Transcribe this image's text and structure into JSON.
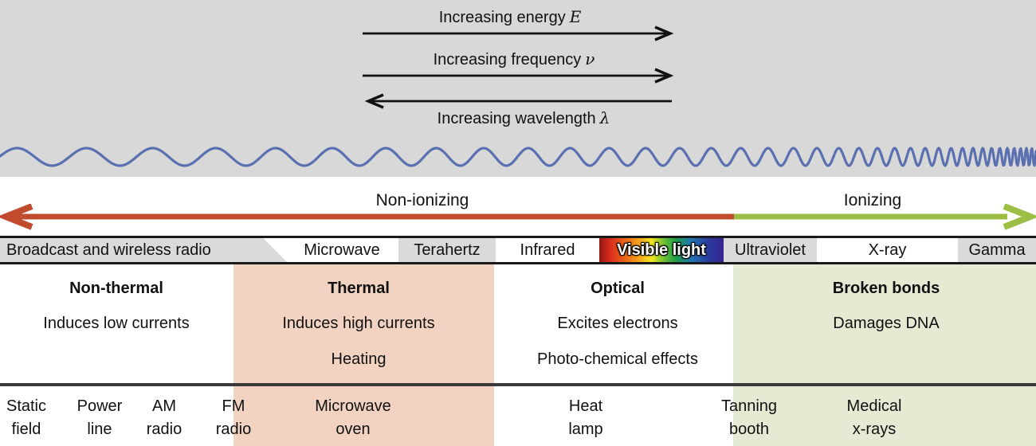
{
  "colors": {
    "top_background": "#d8d8d8",
    "band_gray": "#dadada",
    "thermal_column": "#f2d3c1",
    "ionizing_column": "#e5ead3",
    "non_ionizing_arrow": "#c04c2d",
    "ionizing_arrow": "#9abf44",
    "wave": "#5a70b0"
  },
  "top_arrows": [
    {
      "label": "Increasing energy",
      "symbol": "E",
      "direction": "right"
    },
    {
      "label": "Increasing frequency",
      "symbol": "ν",
      "direction": "right"
    },
    {
      "label": "Increasing wavelength",
      "symbol": "λ",
      "direction": "left"
    }
  ],
  "ionization": {
    "non_ionizing": "Non-ionizing",
    "ionizing": "Ionizing"
  },
  "bands": [
    {
      "label": "Broadcast and wireless radio"
    },
    {
      "label": "Microwave"
    },
    {
      "label": "Terahertz"
    },
    {
      "label": "Infrared"
    },
    {
      "label": "Visible light"
    },
    {
      "label": "Ultraviolet"
    },
    {
      "label": "X-ray"
    },
    {
      "label": "Gamma"
    }
  ],
  "effects": [
    {
      "title": "Non-thermal",
      "line1": "Induces low currents",
      "line2": ""
    },
    {
      "title": "Thermal",
      "line1": "Induces high currents",
      "line2": "Heating"
    },
    {
      "title": "Optical",
      "line1": "Excites electrons",
      "line2": "Photo-chemical effects"
    },
    {
      "title": "Broken bonds",
      "line1": "Damages DNA",
      "line2": ""
    }
  ],
  "examples": [
    {
      "line1": "Static",
      "line2": "field"
    },
    {
      "line1": "Power",
      "line2": "line"
    },
    {
      "line1": "AM",
      "line2": "radio"
    },
    {
      "line1": "FM",
      "line2": "radio"
    },
    {
      "line1": "Microwave",
      "line2": "oven"
    },
    {
      "line1": "Heat",
      "line2": "lamp"
    },
    {
      "line1": "Tanning",
      "line2": "booth"
    },
    {
      "line1": "Medical",
      "line2": "x-rays"
    }
  ]
}
